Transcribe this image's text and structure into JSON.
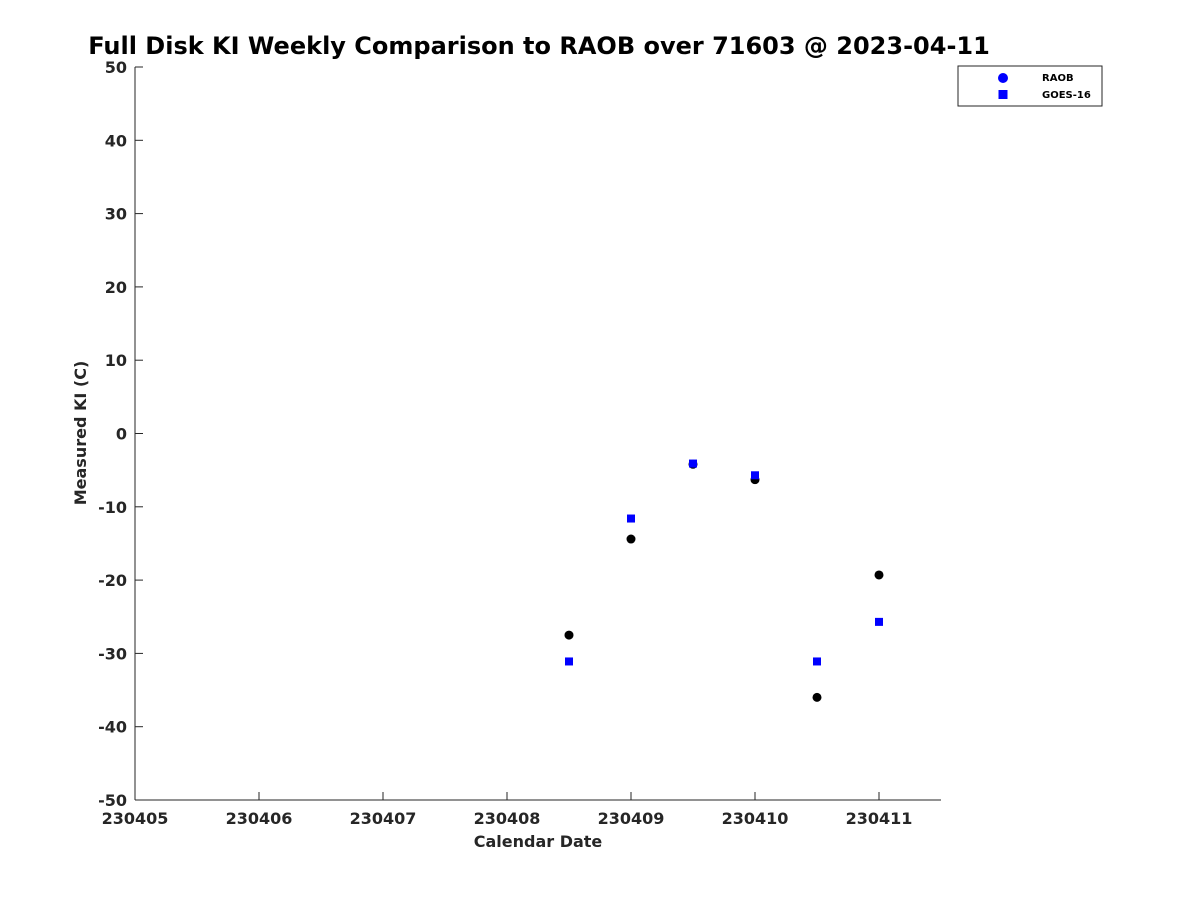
{
  "chart_data": {
    "type": "scatter",
    "title": "Full Disk KI Weekly Comparison to RAOB over 71603 @ 2023-04-11",
    "xlabel": "Calendar Date",
    "ylabel": "Measured KI (C)",
    "xlim": [
      230405,
      230411.5
    ],
    "ylim": [
      -50,
      50
    ],
    "xticks": [
      230405,
      230406,
      230407,
      230408,
      230409,
      230410,
      230411
    ],
    "xtick_labels": [
      "230405",
      "230406",
      "230407",
      "230408",
      "230409",
      "230410",
      "230411"
    ],
    "yticks": [
      -50,
      -40,
      -30,
      -20,
      -10,
      0,
      10,
      20,
      30,
      40,
      50
    ],
    "ytick_labels": [
      "-50",
      "-40",
      "-30",
      "-20",
      "-10",
      "0",
      "10",
      "20",
      "30",
      "40",
      "50"
    ],
    "grid": false,
    "legend_position": "top-right",
    "series": [
      {
        "name": "RAOB",
        "marker": "circle",
        "color": "#000000",
        "legend_color": "#0000ff",
        "x": [
          230408.5,
          230409,
          230409.5,
          230410,
          230410.5,
          230411
        ],
        "y": [
          -27.5,
          -14.4,
          -4.2,
          -6.3,
          -36.0,
          -19.3
        ]
      },
      {
        "name": "GOES-16",
        "marker": "square",
        "color": "#0000ff",
        "legend_color": "#0000ff",
        "x": [
          230408.5,
          230409,
          230409.5,
          230410,
          230410.5,
          230411
        ],
        "y": [
          -31.1,
          -11.6,
          -4.1,
          -5.7,
          -31.1,
          -25.7
        ]
      }
    ]
  }
}
